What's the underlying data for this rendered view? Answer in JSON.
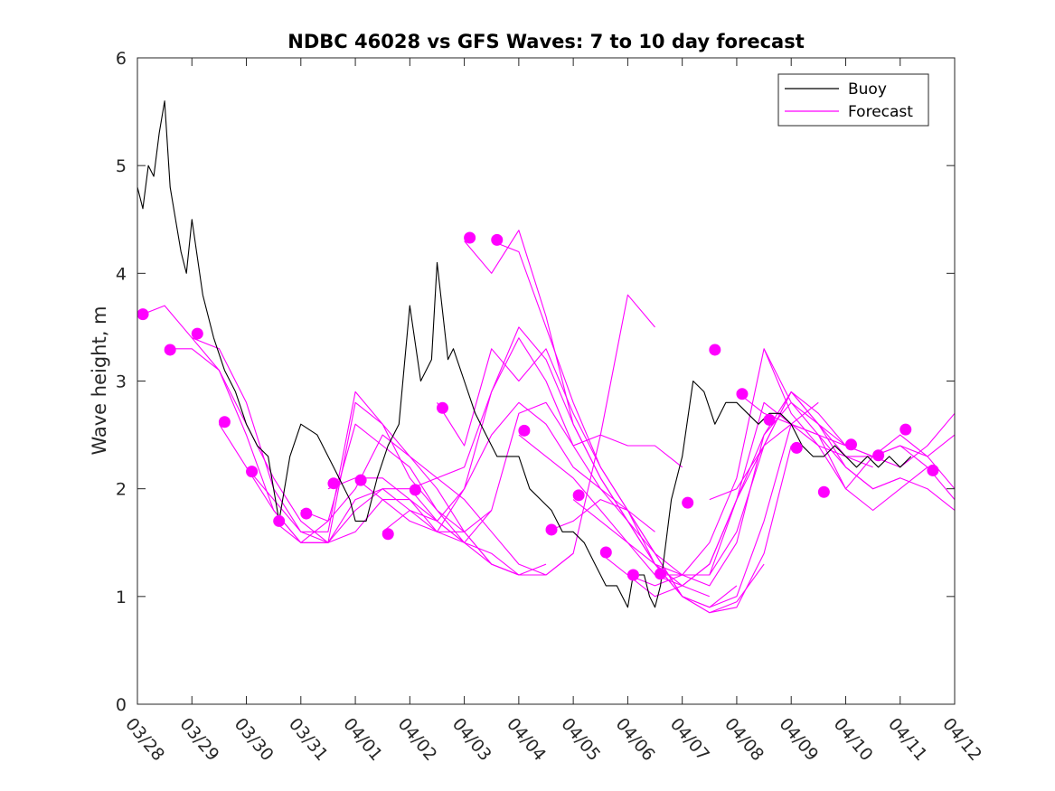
{
  "chart_data": {
    "type": "line",
    "title": "NDBC 46028 vs GFS Waves: 7 to 10 day forecast",
    "xlabel": "",
    "ylabel": "Wave height, m",
    "xlim": [
      0,
      15
    ],
    "ylim": [
      0,
      6
    ],
    "yticks": [
      0,
      1,
      2,
      3,
      4,
      5,
      6
    ],
    "xtick_labels": [
      "03/28",
      "03/29",
      "03/30",
      "03/31",
      "04/01",
      "04/02",
      "04/03",
      "04/04",
      "04/05",
      "04/06",
      "04/07",
      "04/08",
      "04/09",
      "04/10",
      "04/11",
      "04/12"
    ],
    "legend_position": "top-right",
    "colors": {
      "buoy": "#000000",
      "forecast": "#ff00ff"
    },
    "series": [
      {
        "name": "Buoy",
        "x": [
          0.0,
          0.1,
          0.2,
          0.3,
          0.4,
          0.5,
          0.6,
          0.7,
          0.8,
          0.9,
          1.0,
          1.2,
          1.4,
          1.6,
          1.8,
          2.0,
          2.2,
          2.4,
          2.6,
          2.8,
          3.0,
          3.3,
          3.6,
          3.9,
          4.0,
          4.2,
          4.4,
          4.6,
          4.8,
          5.0,
          5.2,
          5.4,
          5.5,
          5.7,
          5.8,
          6.0,
          6.2,
          6.4,
          6.6,
          6.8,
          7.0,
          7.2,
          7.4,
          7.6,
          7.8,
          8.0,
          8.2,
          8.4,
          8.6,
          8.8,
          9.0,
          9.1,
          9.3,
          9.4,
          9.5,
          9.6,
          9.7,
          9.8,
          10.0,
          10.2,
          10.4,
          10.6,
          10.8,
          11.0,
          11.2,
          11.4,
          11.6,
          11.8,
          12.0,
          12.2,
          12.4,
          12.6,
          12.8,
          13.0,
          13.2,
          13.4,
          13.6,
          13.8,
          14.0,
          14.2
        ],
        "values": [
          4.8,
          4.6,
          5.0,
          4.9,
          5.3,
          5.6,
          4.8,
          4.5,
          4.2,
          4.0,
          4.5,
          3.8,
          3.4,
          3.1,
          2.9,
          2.6,
          2.4,
          2.3,
          1.7,
          2.3,
          2.6,
          2.5,
          2.2,
          1.9,
          1.7,
          1.7,
          2.1,
          2.4,
          2.6,
          3.7,
          3.0,
          3.2,
          4.1,
          3.2,
          3.3,
          3.0,
          2.7,
          2.5,
          2.3,
          2.3,
          2.3,
          2.0,
          1.9,
          1.8,
          1.6,
          1.6,
          1.5,
          1.3,
          1.1,
          1.1,
          0.9,
          1.2,
          1.2,
          1.0,
          0.9,
          1.1,
          1.5,
          1.9,
          2.3,
          3.0,
          2.9,
          2.6,
          2.8,
          2.8,
          2.7,
          2.6,
          2.7,
          2.7,
          2.6,
          2.4,
          2.3,
          2.3,
          2.4,
          2.3,
          2.2,
          2.3,
          2.2,
          2.3,
          2.2,
          2.3
        ]
      },
      {
        "name": "Forecast",
        "x": [
          0.0,
          0.5,
          1.0,
          1.5,
          2.0,
          2.5,
          3.0,
          3.5,
          4.0,
          4.5,
          5.0,
          5.5,
          6.0
        ],
        "values": [
          3.6,
          3.7,
          3.4,
          3.1,
          2.6,
          2.1,
          1.7,
          1.5,
          1.6,
          1.9,
          1.9,
          1.7,
          1.5
        ]
      },
      {
        "name": "Forecast",
        "x": [
          0.5,
          1.0,
          1.5,
          2.0,
          2.5,
          3.0,
          3.5,
          4.0,
          4.5,
          5.0,
          5.5,
          6.0,
          6.5
        ],
        "values": [
          3.3,
          3.3,
          3.1,
          2.5,
          1.8,
          1.5,
          1.5,
          1.9,
          2.0,
          2.0,
          1.7,
          1.5,
          1.8
        ]
      },
      {
        "name": "Forecast",
        "x": [
          1.0,
          1.5,
          2.0,
          2.5,
          3.0,
          3.5,
          4.0,
          4.5,
          5.0,
          5.5,
          6.0,
          6.5,
          7.0
        ],
        "values": [
          3.4,
          3.3,
          2.8,
          2.0,
          1.6,
          1.5,
          1.8,
          2.0,
          1.8,
          1.6,
          1.5,
          1.4,
          1.2
        ]
      },
      {
        "name": "Forecast",
        "x": [
          1.5,
          2.0,
          2.5,
          3.0,
          3.5,
          4.0,
          4.5,
          5.0,
          5.5,
          6.0,
          6.5,
          7.0
        ],
        "values": [
          2.6,
          2.2,
          1.9,
          1.6,
          1.6,
          2.9,
          2.6,
          2.1,
          1.8,
          1.5,
          1.3,
          1.2
        ]
      },
      {
        "name": "Forecast",
        "x": [
          2.0,
          2.5,
          3.0,
          3.5,
          4.0,
          4.5,
          5.0,
          5.5,
          6.0,
          6.5,
          7.0,
          7.5
        ],
        "values": [
          2.2,
          1.8,
          1.5,
          1.5,
          2.8,
          2.6,
          2.3,
          2.0,
          1.6,
          1.3,
          1.2,
          1.3
        ]
      },
      {
        "name": "Forecast",
        "x": [
          2.5,
          3.0,
          3.5,
          4.0,
          4.5,
          5.0,
          5.5,
          6.0,
          6.5,
          7.0,
          7.5,
          8.0
        ],
        "values": [
          1.7,
          1.5,
          1.7,
          2.6,
          2.4,
          2.2,
          1.8,
          1.6,
          1.3,
          1.2,
          1.2,
          1.4
        ]
      },
      {
        "name": "Forecast",
        "x": [
          3.0,
          3.5,
          4.0,
          4.5,
          5.0,
          5.5,
          6.0,
          6.5,
          7.0,
          7.5,
          8.0,
          8.5,
          9.0,
          9.5
        ],
        "values": [
          1.8,
          1.7,
          2.0,
          2.5,
          2.3,
          2.1,
          1.9,
          1.6,
          1.3,
          1.2,
          1.4,
          2.5,
          3.8,
          3.5
        ]
      },
      {
        "name": "Forecast",
        "x": [
          3.5,
          4.0,
          4.5,
          5.0,
          5.5,
          6.0,
          6.5,
          7.0,
          7.5,
          8.0,
          8.5,
          9.0,
          9.5,
          10.0
        ],
        "values": [
          2.0,
          2.1,
          2.1,
          1.9,
          1.6,
          1.6,
          1.8,
          2.7,
          2.8,
          2.4,
          2.5,
          2.4,
          2.4,
          2.2
        ]
      },
      {
        "name": "Forecast",
        "x": [
          4.0,
          4.5,
          5.0,
          5.5,
          6.0,
          6.5,
          7.0,
          7.5,
          8.0,
          8.5,
          9.0,
          9.5
        ],
        "values": [
          2.1,
          1.9,
          1.7,
          1.6,
          2.0,
          2.5,
          2.8,
          2.6,
          2.2,
          2.0,
          1.8,
          1.6
        ]
      },
      {
        "name": "Forecast",
        "x": [
          4.5,
          5.0,
          5.5,
          6.0,
          6.5,
          7.0,
          7.5,
          8.0,
          8.5,
          9.0,
          9.5,
          10.0
        ],
        "values": [
          1.6,
          1.8,
          1.7,
          2.0,
          2.9,
          3.4,
          3.0,
          2.4,
          2.0,
          1.7,
          1.4,
          1.2
        ]
      },
      {
        "name": "Forecast",
        "x": [
          5.0,
          5.5,
          6.0,
          6.5,
          7.0,
          7.5,
          8.0,
          8.5,
          9.0,
          9.5,
          10.0,
          10.5
        ],
        "values": [
          2.0,
          2.1,
          2.2,
          2.9,
          3.5,
          3.2,
          2.6,
          2.1,
          1.7,
          1.3,
          1.1,
          1.0
        ]
      },
      {
        "name": "Forecast",
        "x": [
          5.5,
          6.0,
          6.5,
          7.0,
          7.5,
          8.0,
          8.5,
          9.0,
          9.5,
          10.0,
          10.5,
          11.0
        ],
        "values": [
          2.8,
          2.4,
          3.3,
          3.0,
          3.3,
          2.7,
          2.2,
          1.8,
          1.4,
          1.0,
          0.9,
          1.1
        ]
      },
      {
        "name": "Forecast",
        "x": [
          6.0,
          6.5,
          7.0,
          7.5,
          8.0,
          8.5,
          9.0,
          9.5,
          10.0,
          10.5,
          11.0,
          11.5
        ],
        "values": [
          4.3,
          4.0,
          4.4,
          3.6,
          2.6,
          2.1,
          1.7,
          1.3,
          1.0,
          0.85,
          0.95,
          1.3
        ]
      },
      {
        "name": "Forecast",
        "x": [
          6.5,
          7.0,
          7.5,
          8.0,
          8.5,
          9.0,
          9.5,
          10.0,
          10.5,
          11.0,
          11.5,
          12.0
        ],
        "values": [
          4.3,
          4.2,
          3.5,
          2.8,
          2.2,
          1.8,
          1.4,
          1.0,
          0.85,
          0.9,
          1.4,
          2.4
        ]
      },
      {
        "name": "Forecast",
        "x": [
          7.0,
          7.5,
          8.0,
          8.5,
          9.0,
          9.5,
          10.0,
          10.5,
          11.0,
          11.5,
          12.0,
          12.5
        ],
        "values": [
          2.5,
          2.3,
          2.1,
          1.8,
          1.5,
          1.3,
          1.0,
          0.9,
          1.0,
          1.7,
          2.6,
          2.8
        ]
      },
      {
        "name": "Forecast",
        "x": [
          7.5,
          8.0,
          8.5,
          9.0,
          9.5,
          10.0,
          10.5,
          11.0,
          11.5,
          12.0,
          12.5,
          13.0
        ],
        "values": [
          1.6,
          1.7,
          1.9,
          1.8,
          1.3,
          1.2,
          1.1,
          1.5,
          2.5,
          2.9,
          2.6,
          2.4
        ]
      },
      {
        "name": "Forecast",
        "x": [
          8.0,
          8.5,
          9.0,
          9.5,
          10.0,
          10.5,
          11.0,
          11.5,
          12.0,
          12.5,
          13.0,
          13.5
        ],
        "values": [
          1.9,
          1.7,
          1.5,
          1.2,
          1.2,
          1.2,
          1.6,
          2.4,
          2.9,
          2.6,
          2.3,
          2.2
        ]
      },
      {
        "name": "Forecast",
        "x": [
          8.5,
          9.0,
          9.5,
          10.0,
          10.5,
          11.0,
          11.5,
          12.0,
          12.5,
          13.0,
          13.5,
          14.0
        ],
        "values": [
          1.4,
          1.2,
          1.1,
          1.2,
          1.2,
          1.9,
          2.5,
          2.8,
          2.6,
          2.2,
          2.0,
          2.1
        ]
      },
      {
        "name": "Forecast",
        "x": [
          9.0,
          9.5,
          10.0,
          10.5,
          11.0,
          11.5,
          12.0,
          12.5,
          13.0,
          13.5,
          14.0,
          14.5
        ],
        "values": [
          1.2,
          1.0,
          1.1,
          1.3,
          1.9,
          2.8,
          2.6,
          2.4,
          2.0,
          1.8,
          2.0,
          2.2
        ]
      },
      {
        "name": "Forecast",
        "x": [
          9.5,
          10.0,
          10.5,
          11.0,
          11.5,
          12.0,
          12.5,
          13.0,
          13.5,
          14.0,
          14.5,
          15.0
        ],
        "values": [
          1.2,
          1.1,
          1.3,
          1.9,
          2.4,
          2.6,
          2.5,
          2.2,
          2.0,
          2.1,
          2.0,
          1.8
        ]
      },
      {
        "name": "Forecast",
        "x": [
          10.0,
          10.5,
          11.0,
          11.5,
          12.0,
          12.5,
          13.0,
          13.5,
          14.0,
          14.5,
          15.0
        ],
        "values": [
          1.2,
          1.5,
          2.1,
          3.3,
          2.8,
          2.5,
          2.4,
          2.3,
          2.2,
          2.4,
          2.7
        ]
      },
      {
        "name": "Forecast",
        "x": [
          10.5,
          11.0,
          11.5,
          12.0,
          12.5,
          13.0,
          13.5,
          14.0,
          14.5,
          15.0
        ],
        "values": [
          1.9,
          2.0,
          2.4,
          2.9,
          2.7,
          2.4,
          2.3,
          2.4,
          2.3,
          2.5
        ]
      },
      {
        "name": "Forecast",
        "x": [
          11.0,
          11.5,
          12.0,
          12.5,
          13.0,
          13.5,
          14.0,
          14.5,
          15.0
        ],
        "values": [
          2.9,
          2.7,
          2.6,
          2.5,
          2.0,
          2.3,
          2.4,
          2.2,
          1.9
        ]
      },
      {
        "name": "Forecast",
        "x": [
          11.5,
          12.0,
          12.5,
          13.0,
          13.5,
          14.0,
          14.5,
          15.0
        ],
        "values": [
          3.3,
          2.7,
          2.4,
          2.3,
          2.3,
          2.5,
          2.3,
          2.0
        ]
      }
    ],
    "forecast_markers": {
      "x": [
        0.1,
        0.6,
        1.1,
        1.6,
        2.1,
        2.6,
        3.1,
        3.6,
        4.1,
        4.6,
        5.1,
        5.6,
        6.1,
        6.6,
        7.1,
        7.6,
        8.1,
        8.6,
        9.1,
        9.6,
        10.1,
        10.6,
        11.1,
        11.6,
        12.1,
        12.6,
        13.1,
        13.6,
        14.1,
        14.6
      ],
      "values": [
        3.62,
        3.29,
        3.44,
        2.62,
        2.16,
        1.7,
        1.77,
        2.05,
        2.08,
        1.58,
        1.99,
        2.75,
        4.33,
        4.31,
        2.54,
        1.62,
        1.94,
        1.41,
        1.2,
        1.21,
        1.87,
        3.29,
        2.88,
        2.64,
        2.38,
        1.97,
        2.41,
        2.31,
        2.55,
        2.17
      ]
    }
  }
}
